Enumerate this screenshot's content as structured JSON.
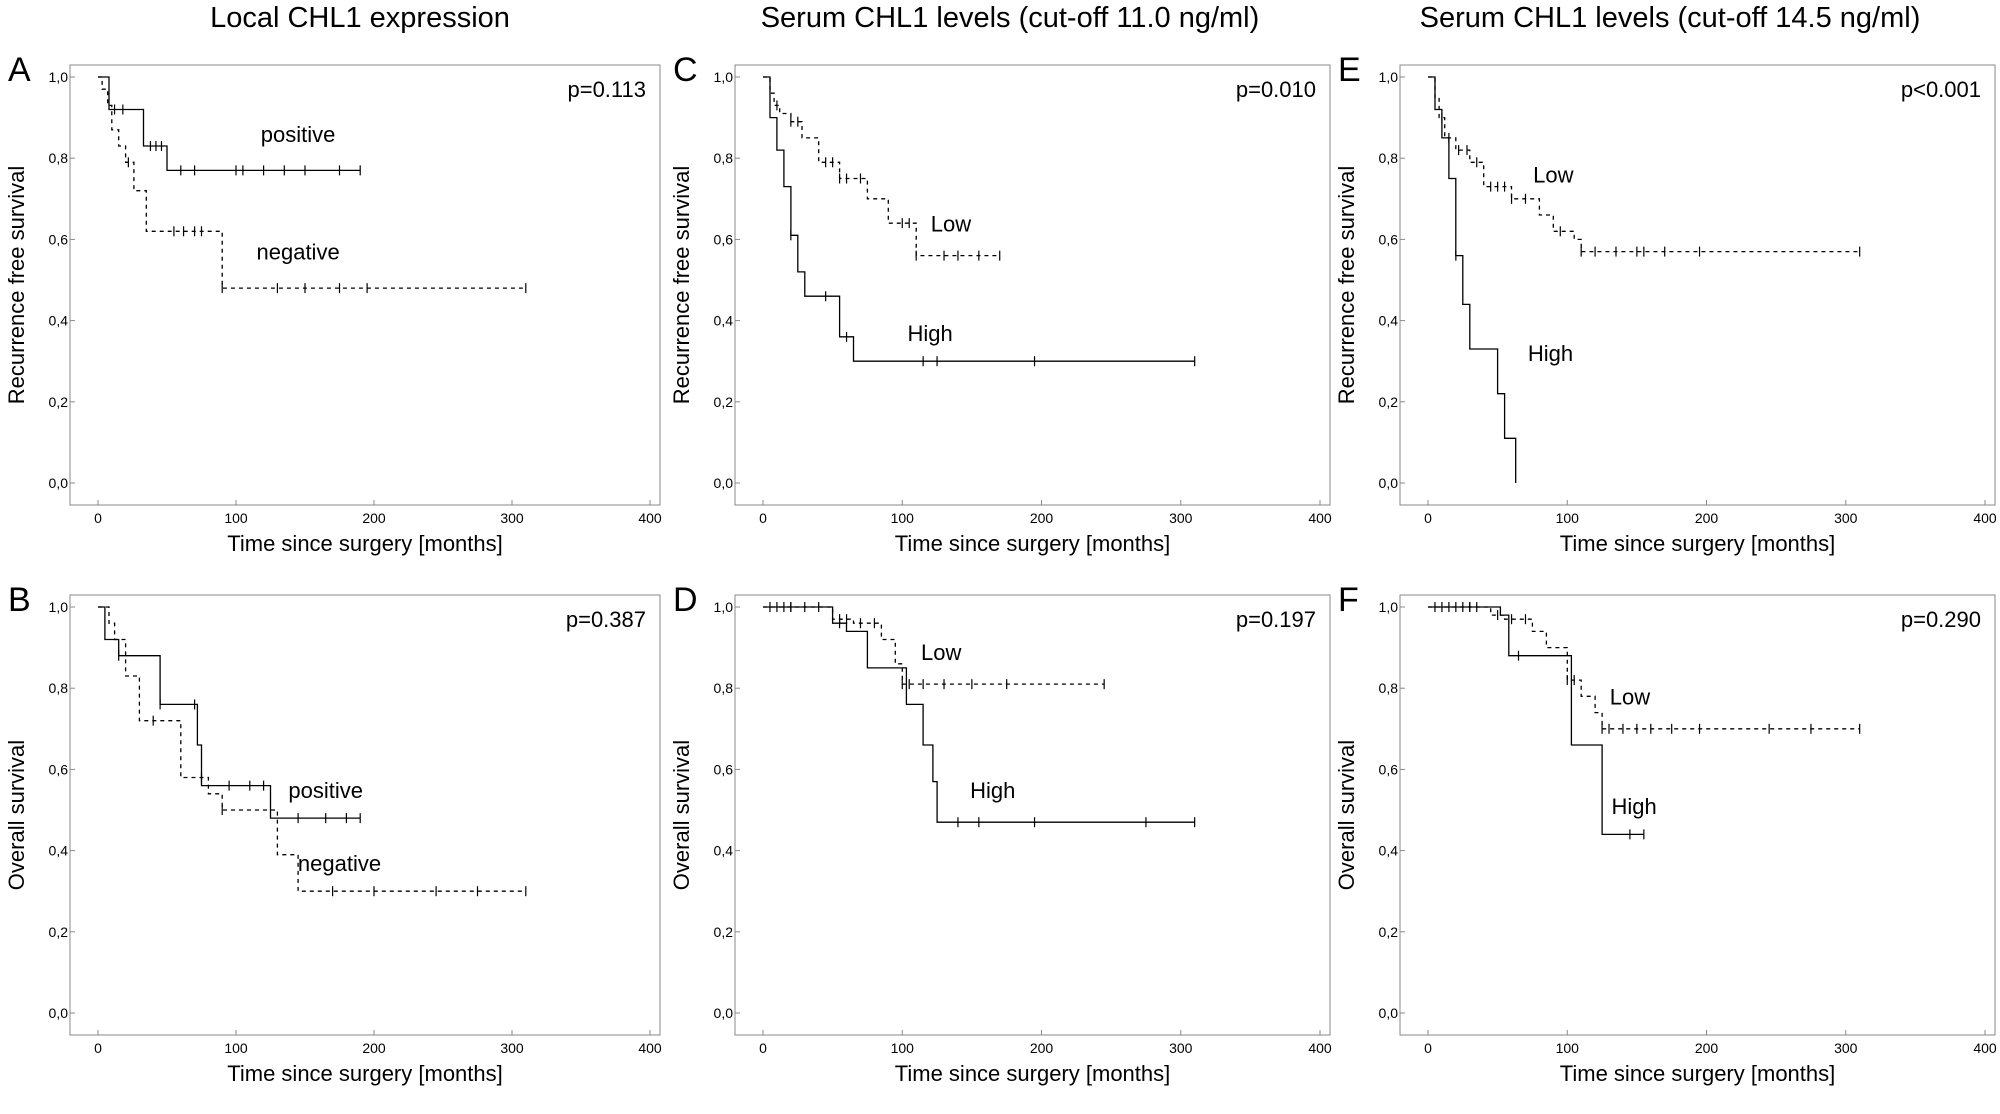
{
  "column_titles": [
    "Local CHL1 expression",
    "Serum CHL1 levels (cut-off 11.0 ng/ml)",
    "Serum CHL1 levels (cut-off 14.5 ng/ml)"
  ],
  "chart_data": [
    {
      "panel": "A",
      "type": "line",
      "subtype": "kaplan-meier",
      "xlabel": "Time since surgery [months]",
      "ylabel": "Recurrence free survival",
      "xlim": [
        0,
        400
      ],
      "ylim": [
        0,
        1
      ],
      "x_ticks": [
        "0",
        "100",
        "200",
        "300",
        "400"
      ],
      "y_ticks": [
        "0,0",
        "0,2",
        "0,4",
        "0,6",
        "0,8",
        "1,0"
      ],
      "p_value": "p=0.113",
      "series": [
        {
          "name": "positive",
          "style": "solid",
          "x": [
            0,
            5,
            8,
            28,
            33,
            48,
            50,
            190
          ],
          "y": [
            1.0,
            1.0,
            0.92,
            0.92,
            0.83,
            0.83,
            0.77,
            0.77
          ],
          "censored_x": [
            12,
            18,
            38,
            42,
            46,
            60,
            70,
            100,
            105,
            120,
            135,
            150,
            175,
            190
          ],
          "label_at": [
            145,
            0.84
          ]
        },
        {
          "name": "negative",
          "style": "dashed",
          "x": [
            0,
            3,
            7,
            10,
            15,
            20,
            26,
            35,
            80,
            90,
            310
          ],
          "y": [
            1.0,
            0.97,
            0.93,
            0.87,
            0.83,
            0.79,
            0.72,
            0.62,
            0.62,
            0.48,
            0.48
          ],
          "censored_x": [
            22,
            55,
            62,
            70,
            75,
            90,
            130,
            150,
            175,
            195,
            310
          ],
          "label_at": [
            145,
            0.55
          ]
        }
      ]
    },
    {
      "panel": "B",
      "type": "line",
      "subtype": "kaplan-meier",
      "xlabel": "Time since surgery [months]",
      "ylabel": "Overall survival",
      "xlim": [
        0,
        400
      ],
      "ylim": [
        0,
        1
      ],
      "x_ticks": [
        "0",
        "100",
        "200",
        "300",
        "400"
      ],
      "y_ticks": [
        "0,0",
        "0,2",
        "0,4",
        "0,6",
        "0,8",
        "1,0"
      ],
      "p_value": "p=0.387",
      "series": [
        {
          "name": "positive",
          "style": "solid",
          "x": [
            0,
            5,
            10,
            15,
            38,
            45,
            65,
            72,
            75,
            120,
            125,
            190
          ],
          "y": [
            1.0,
            0.92,
            0.92,
            0.88,
            0.88,
            0.76,
            0.76,
            0.66,
            0.56,
            0.56,
            0.48,
            0.48
          ],
          "censored_x": [
            15,
            45,
            70,
            95,
            110,
            120,
            145,
            165,
            180,
            190
          ],
          "label_at": [
            165,
            0.53
          ]
        },
        {
          "name": "negative",
          "style": "dashed",
          "x": [
            0,
            8,
            12,
            20,
            30,
            50,
            60,
            80,
            90,
            125,
            130,
            145,
            310
          ],
          "y": [
            1.0,
            0.96,
            0.92,
            0.83,
            0.72,
            0.72,
            0.58,
            0.54,
            0.5,
            0.5,
            0.39,
            0.3,
            0.3
          ],
          "censored_x": [
            40,
            75,
            90,
            170,
            200,
            245,
            275,
            310
          ],
          "label_at": [
            175,
            0.35
          ]
        }
      ]
    },
    {
      "panel": "C",
      "type": "line",
      "subtype": "kaplan-meier",
      "xlabel": "Time since surgery [months]",
      "ylabel": "Recurrence free survival",
      "xlim": [
        0,
        400
      ],
      "ylim": [
        0,
        1
      ],
      "x_ticks": [
        "0",
        "100",
        "200",
        "300",
        "400"
      ],
      "y_ticks": [
        "0,0",
        "0,2",
        "0,4",
        "0,6",
        "0,8",
        "1,0"
      ],
      "p_value": "p=0.010",
      "series": [
        {
          "name": "Low",
          "style": "dashed",
          "x": [
            0,
            5,
            8,
            12,
            20,
            28,
            40,
            55,
            75,
            90,
            110,
            170
          ],
          "y": [
            1.0,
            0.96,
            0.93,
            0.91,
            0.89,
            0.85,
            0.79,
            0.75,
            0.7,
            0.64,
            0.56,
            0.56
          ],
          "censored_x": [
            10,
            20,
            25,
            45,
            50,
            55,
            60,
            70,
            100,
            105,
            110,
            130,
            140,
            155,
            170
          ],
          "label_at": [
            135,
            0.62
          ]
        },
        {
          "name": "High",
          "style": "solid",
          "x": [
            0,
            5,
            10,
            15,
            20,
            25,
            30,
            50,
            55,
            65,
            310
          ],
          "y": [
            1.0,
            0.9,
            0.82,
            0.73,
            0.61,
            0.52,
            0.46,
            0.46,
            0.36,
            0.3,
            0.3
          ],
          "censored_x": [
            20,
            45,
            60,
            115,
            125,
            195,
            310
          ],
          "label_at": [
            120,
            0.35
          ]
        }
      ]
    },
    {
      "panel": "D",
      "type": "line",
      "subtype": "kaplan-meier",
      "xlabel": "Time since surgery [months]",
      "ylabel": "Overall survival",
      "xlim": [
        0,
        400
      ],
      "ylim": [
        0,
        1
      ],
      "x_ticks": [
        "0",
        "100",
        "200",
        "300",
        "400"
      ],
      "y_ticks": [
        "0,0",
        "0,2",
        "0,4",
        "0,6",
        "0,8",
        "1,0"
      ],
      "p_value": "p=0.197",
      "series": [
        {
          "name": "Low",
          "style": "dashed",
          "x": [
            0,
            50,
            65,
            85,
            95,
            100,
            245
          ],
          "y": [
            1.0,
            0.97,
            0.96,
            0.92,
            0.86,
            0.81,
            0.81
          ],
          "censored_x": [
            5,
            10,
            15,
            20,
            30,
            40,
            55,
            60,
            70,
            80,
            100,
            105,
            115,
            130,
            150,
            175,
            245
          ],
          "label_at": [
            128,
            0.87
          ]
        },
        {
          "name": "High",
          "style": "solid",
          "x": [
            0,
            50,
            60,
            75,
            103,
            115,
            122,
            125,
            310
          ],
          "y": [
            1.0,
            0.96,
            0.94,
            0.85,
            0.76,
            0.66,
            0.57,
            0.47,
            0.47
          ],
          "censored_x": [
            20,
            55,
            140,
            155,
            195,
            275,
            310
          ],
          "label_at": [
            165,
            0.53
          ]
        }
      ]
    },
    {
      "panel": "E",
      "type": "line",
      "subtype": "kaplan-meier",
      "xlabel": "Time since surgery [months]",
      "ylabel": "Recurrence free survival",
      "xlim": [
        0,
        400
      ],
      "ylim": [
        0,
        1
      ],
      "x_ticks": [
        "0",
        "100",
        "200",
        "300",
        "400"
      ],
      "y_ticks": [
        "0,0",
        "0,2",
        "0,4",
        "0,6",
        "0,8",
        "1,0"
      ],
      "p_value": "p<0.001",
      "series": [
        {
          "name": "Low",
          "style": "dashed",
          "x": [
            0,
            5,
            8,
            12,
            20,
            30,
            40,
            60,
            80,
            90,
            105,
            110,
            310
          ],
          "y": [
            1.0,
            0.95,
            0.9,
            0.85,
            0.82,
            0.79,
            0.73,
            0.7,
            0.66,
            0.62,
            0.6,
            0.57,
            0.57
          ],
          "censored_x": [
            10,
            15,
            22,
            28,
            35,
            45,
            50,
            55,
            60,
            70,
            95,
            110,
            120,
            135,
            150,
            155,
            170,
            195,
            310
          ],
          "label_at": [
            90,
            0.74
          ]
        },
        {
          "name": "High",
          "style": "solid",
          "x": [
            0,
            5,
            10,
            15,
            20,
            25,
            30,
            45,
            50,
            55,
            63
          ],
          "y": [
            1.0,
            0.92,
            0.85,
            0.75,
            0.56,
            0.44,
            0.33,
            0.33,
            0.22,
            0.11,
            0.0
          ],
          "censored_x": [
            20
          ],
          "label_at": [
            88,
            0.3
          ]
        }
      ]
    },
    {
      "panel": "F",
      "type": "line",
      "subtype": "kaplan-meier",
      "xlabel": "Time since surgery [months]",
      "ylabel": "Overall survival",
      "xlim": [
        0,
        400
      ],
      "ylim": [
        0,
        1
      ],
      "x_ticks": [
        "0",
        "100",
        "200",
        "300",
        "400"
      ],
      "y_ticks": [
        "0,0",
        "0,2",
        "0,4",
        "0,6",
        "0,8",
        "1,0"
      ],
      "p_value": "p=0.290",
      "series": [
        {
          "name": "Low",
          "style": "dashed",
          "x": [
            0,
            45,
            55,
            75,
            85,
            100,
            110,
            120,
            125,
            310
          ],
          "y": [
            1.0,
            0.98,
            0.97,
            0.94,
            0.9,
            0.82,
            0.78,
            0.74,
            0.7,
            0.7
          ],
          "censored_x": [
            5,
            10,
            15,
            20,
            25,
            30,
            35,
            50,
            60,
            70,
            100,
            105,
            125,
            130,
            140,
            150,
            160,
            175,
            195,
            245,
            275,
            310
          ],
          "label_at": [
            145,
            0.76
          ]
        },
        {
          "name": "High",
          "style": "solid",
          "x": [
            0,
            52,
            58,
            103,
            125,
            155
          ],
          "y": [
            1.0,
            0.98,
            0.88,
            0.66,
            0.44,
            0.44
          ],
          "censored_x": [
            30,
            65,
            145,
            155
          ],
          "label_at": [
            148,
            0.49
          ]
        }
      ]
    }
  ]
}
